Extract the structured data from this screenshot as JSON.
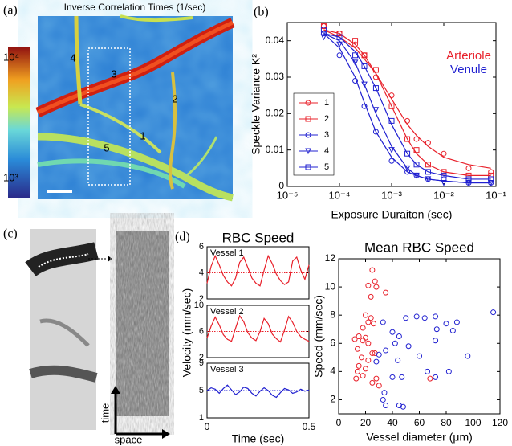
{
  "panel_labels": [
    "(a)",
    "(b)",
    "(c)",
    "(d)"
  ],
  "image_a": {
    "title": "Inverse Correlation Times (1/sec)",
    "colorbar_labels": [
      "10⁴",
      "10³"
    ],
    "vessel_labels": [
      "1",
      "2",
      "3",
      "4",
      "5"
    ]
  },
  "image_c": {
    "axis_labels": [
      "time",
      "space"
    ]
  },
  "chart_data": [
    {
      "type": "line",
      "log_x": true,
      "y_label": "Speckle Variance K²",
      "x_label": "Exposure Duraiton (sec)",
      "xlim": [
        1e-05,
        0.1
      ],
      "xticks": [
        {
          "value": 1e-05,
          "label": "10⁻⁵"
        },
        {
          "value": 0.0001,
          "label": "10⁻⁴"
        },
        {
          "value": 0.001,
          "label": "10⁻³"
        },
        {
          "value": 0.01,
          "label": "10⁻²"
        },
        {
          "value": 0.1,
          "label": "10⁻¹"
        }
      ],
      "ylim": [
        0,
        0.045
      ],
      "yticks": [
        0,
        0.01,
        0.02,
        0.03,
        0.04
      ],
      "annotations": [
        {
          "text": "Arteriole",
          "color": "#e8202a"
        },
        {
          "text": "Venule",
          "color": "#2020d0"
        }
      ],
      "x": [
        5e-05,
        0.0001,
        0.0002,
        0.0003,
        0.0005,
        0.001,
        0.002,
        0.003,
        0.005,
        0.01,
        0.03,
        0.08
      ],
      "series": [
        {
          "name": "1",
          "color": "#e8202a",
          "marker": "circle",
          "values": [
            0.044,
            0.042,
            0.039,
            0.036,
            0.03,
            0.025,
            0.018,
            0.013,
            0.012,
            0.009,
            0.005,
            0.004
          ],
          "fit": [
            0.043,
            0.041,
            0.038,
            0.035,
            0.031,
            0.024,
            0.017,
            0.014,
            0.011,
            0.008,
            0.006,
            0.005
          ]
        },
        {
          "name": "2",
          "color": "#e8202a",
          "marker": "square",
          "values": [
            0.044,
            0.042,
            0.04,
            0.036,
            0.032,
            0.022,
            0.013,
            0.01,
            0.006,
            0.004,
            0.003,
            0.003
          ],
          "fit": [
            0.043,
            0.042,
            0.039,
            0.036,
            0.031,
            0.022,
            0.013,
            0.009,
            0.006,
            0.004,
            0.003,
            0.003
          ]
        },
        {
          "name": "3",
          "color": "#2020d0",
          "marker": "circle",
          "values": [
            0.042,
            0.036,
            0.029,
            0.022,
            0.015,
            0.007,
            0.004,
            0.003,
            0.002,
            0.002,
            0.001,
            0.001
          ],
          "fit": [
            0.042,
            0.038,
            0.03,
            0.023,
            0.015,
            0.008,
            0.004,
            0.003,
            0.002,
            0.0015,
            0.001,
            0.001
          ]
        },
        {
          "name": "4",
          "color": "#2020d0",
          "marker": "triangle",
          "values": [
            0.041,
            0.039,
            0.034,
            0.028,
            0.021,
            0.01,
            0.005,
            0.003,
            0.002,
            0.001,
            0.001,
            0.001
          ],
          "fit": [
            0.042,
            0.04,
            0.034,
            0.028,
            0.02,
            0.011,
            0.005,
            0.003,
            0.002,
            0.0015,
            0.001,
            0.001
          ]
        },
        {
          "name": "5",
          "color": "#2020d0",
          "marker": "square",
          "values": [
            0.043,
            0.041,
            0.036,
            0.033,
            0.027,
            0.018,
            0.009,
            0.006,
            0.004,
            0.003,
            0.002,
            0.002
          ],
          "fit": [
            0.042,
            0.041,
            0.037,
            0.033,
            0.027,
            0.017,
            0.009,
            0.006,
            0.004,
            0.003,
            0.002,
            0.002
          ]
        }
      ]
    },
    {
      "type": "multiline",
      "title": "RBC Speed",
      "y_label": "Velocity (mm/sec)",
      "x_label": "Time (sec)",
      "xlim": [
        0,
        0.5
      ],
      "xticks": [
        0,
        0.5
      ],
      "x": [
        0,
        0.02,
        0.04,
        0.06,
        0.08,
        0.1,
        0.12,
        0.14,
        0.16,
        0.18,
        0.2,
        0.22,
        0.24,
        0.26,
        0.28,
        0.3,
        0.32,
        0.34,
        0.36,
        0.38,
        0.4,
        0.42,
        0.44,
        0.46,
        0.48,
        0.5
      ],
      "panels": [
        {
          "label": "Vessel 1",
          "color": "#e8202a",
          "ylim": [
            2,
            6
          ],
          "yticks": [
            2,
            4,
            6
          ],
          "mean": 4,
          "values": [
            3.2,
            4.5,
            5.3,
            4.6,
            3.8,
            3.3,
            3.0,
            3.6,
            4.8,
            5.2,
            4.4,
            3.6,
            3.2,
            3.0,
            4.2,
            5.3,
            4.7,
            3.9,
            3.4,
            3.1,
            3.3,
            4.9,
            5.2,
            4.2,
            3.5,
            4.6
          ]
        },
        {
          "label": "Vessel 2",
          "color": "#e8202a",
          "ylim": [
            2,
            10
          ],
          "yticks": [
            2,
            6,
            10
          ],
          "mean": 6,
          "values": [
            5.0,
            6.8,
            8.2,
            7.0,
            5.5,
            4.8,
            4.5,
            6.5,
            8.4,
            7.5,
            5.8,
            5.0,
            4.6,
            6.0,
            8.0,
            7.2,
            5.6,
            4.9,
            4.4,
            6.2,
            8.3,
            7.4,
            6.0,
            5.2,
            4.8,
            4.5
          ]
        },
        {
          "label": "Vessel 3",
          "color": "#2020d0",
          "ylim": [
            1,
            9
          ],
          "yticks": [
            1,
            5,
            9
          ],
          "mean": 5,
          "values": [
            5.0,
            5.4,
            5.2,
            4.6,
            5.3,
            5.8,
            5.1,
            4.4,
            4.8,
            5.5,
            5.3,
            4.6,
            4.2,
            4.9,
            5.4,
            5.0,
            4.3,
            4.0,
            4.7,
            5.3,
            5.1,
            4.6,
            4.8,
            5.2,
            4.9,
            5.1
          ]
        }
      ]
    },
    {
      "type": "scatter",
      "title": "Mean RBC Speed",
      "y_label": "Speed (mm/sec)",
      "x_label": "Vessel diameter (μm)",
      "xlim": [
        0,
        120
      ],
      "xticks": [
        0,
        20,
        40,
        60,
        80,
        100,
        120
      ],
      "ylim": [
        1,
        12
      ],
      "yticks": [
        2,
        4,
        6,
        8,
        10,
        12
      ],
      "series": [
        {
          "color": "#e8202a",
          "x": [
            25,
            27,
            22,
            28,
            35,
            24,
            20,
            24,
            22,
            26,
            18,
            15,
            20,
            12,
            18,
            22,
            14,
            25,
            27,
            17,
            22,
            15,
            20,
            14,
            18,
            13,
            28,
            68,
            25,
            30
          ],
          "values": [
            11.2,
            10.4,
            10.1,
            10,
            9.6,
            9.3,
            8,
            7.8,
            7.5,
            7.4,
            7.1,
            6.5,
            6.4,
            6.3,
            6.2,
            6,
            5.6,
            5.3,
            5.3,
            5,
            4.8,
            4.4,
            4.2,
            4,
            3.7,
            3.5,
            3.5,
            3.5,
            3.2,
            3
          ]
        },
        {
          "color": "#2020d0",
          "x": [
            115,
            50,
            58,
            64,
            72,
            80,
            33,
            88,
            73,
            40,
            85,
            45,
            72,
            42,
            52,
            35,
            30,
            60,
            96,
            44,
            28,
            66,
            82,
            40,
            47,
            34,
            33,
            35,
            45,
            48,
            72
          ],
          "values": [
            8.2,
            7.8,
            7.9,
            7.8,
            7.9,
            7.4,
            7.5,
            7.5,
            7,
            6.8,
            6.9,
            6.5,
            6.2,
            6,
            5.8,
            5.5,
            5.2,
            5.1,
            5.1,
            4.8,
            4.7,
            4,
            4,
            3.6,
            3.6,
            2.5,
            2,
            1.6,
            1.6,
            1.5,
            3.6
          ]
        }
      ]
    }
  ]
}
